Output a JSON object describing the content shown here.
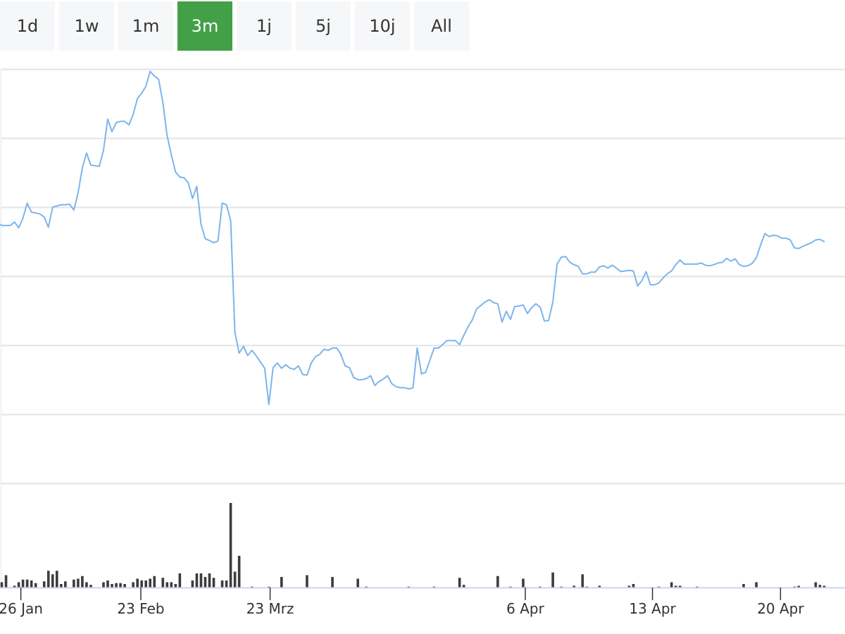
{
  "range_selector": {
    "buttons": [
      "1d",
      "1w",
      "1m",
      "3m",
      "1j",
      "5j",
      "10j",
      "All"
    ],
    "selected": "3m",
    "active_color": "#43a047"
  },
  "chart_data": [
    {
      "type": "line",
      "title": "",
      "xlabel": "",
      "ylabel": "",
      "x_unit": "trading day index (0 = first visible day)",
      "x_range": [
        0,
        195
      ],
      "y_range": [
        0,
        60
      ],
      "grid": true,
      "line_color": "#7cb5ec",
      "series": [
        {
          "values": [
            33.3,
            32.8,
            32.8,
            32.8,
            33.4,
            32.4,
            34.1,
            36.7,
            35.1,
            35.0,
            34.8,
            34.3,
            32.5,
            36.0,
            36.2,
            36.4,
            36.4,
            36.5,
            35.5,
            38.5,
            42.8,
            45.4,
            43.3,
            43.2,
            43.1,
            45.9,
            51.3,
            49.1,
            50.7,
            50.9,
            50.9,
            50.3,
            52.1,
            54.9,
            55.8,
            57.0,
            59.6,
            58.8,
            58.2,
            54.2,
            48.4,
            45.1,
            42.1,
            41.2,
            41.1,
            40.2,
            37.5,
            39.6,
            33.0,
            30.5,
            30.2,
            29.8,
            30.1,
            36.7,
            36.4,
            33.6,
            14.2,
            10.6,
            11.8,
            10.2,
            11.1,
            10.2,
            9.1,
            8.0,
            1.7,
            8.1,
            8.9,
            8.0,
            8.6,
            8.0,
            7.8,
            8.4,
            6.9,
            6.8,
            8.9,
            10.0,
            10.4,
            11.3,
            11.1,
            11.5,
            11.5,
            10.4,
            8.4,
            8.1,
            6.4,
            6.0,
            6.0,
            6.2,
            6.7,
            5.0,
            5.7,
            6.1,
            6.7,
            5.3,
            4.8,
            4.6,
            4.6,
            4.4,
            4.6,
            11.5,
            7.0,
            7.3,
            9.4,
            11.5,
            11.5,
            12.1,
            12.8,
            12.8,
            12.8,
            12.1,
            13.7,
            15.2,
            16.4,
            18.3,
            18.9,
            19.5,
            19.9,
            19.4,
            19.2,
            16.0,
            17.9,
            16.5,
            18.7,
            18.8,
            19.0,
            17.5,
            18.5,
            19.2,
            18.6,
            16.2,
            16.3,
            19.5,
            26.1,
            27.3,
            27.4,
            26.4,
            26.0,
            25.7,
            24.4,
            24.4,
            24.7,
            24.7,
            25.6,
            25.8,
            25.4,
            25.9,
            25.4,
            24.8,
            24.9,
            25.0,
            24.9,
            22.3,
            23.2,
            24.8,
            22.5,
            22.5,
            22.8,
            23.7,
            24.4,
            24.9,
            26.0,
            26.8,
            26.1,
            26.1,
            26.1,
            26.1,
            26.3,
            25.9,
            25.8,
            26.0,
            26.3,
            26.4,
            27.1,
            26.6,
            27.0,
            26.0,
            25.7,
            25.8,
            26.2,
            27.2,
            29.4,
            31.4,
            30.9,
            31.1,
            31.0,
            30.6,
            30.6,
            30.3,
            28.9,
            28.8,
            29.2,
            29.5,
            29.8,
            30.3,
            30.4,
            30.0
          ]
        }
      ]
    },
    {
      "type": "bar",
      "title": "",
      "xlabel": "",
      "ylabel": "",
      "x_unit": "trading day index (0 = first visible day)",
      "y_range": [
        0,
        100
      ],
      "bar_color": "#3c3c3c",
      "x": [
        0,
        1,
        2,
        4,
        5,
        6,
        7,
        8,
        9,
        11,
        12,
        13,
        14,
        15,
        16,
        18,
        19,
        20,
        21,
        22,
        25,
        26,
        27,
        28,
        29,
        30,
        32,
        33,
        34,
        35,
        36,
        37,
        39,
        40,
        41,
        42,
        43,
        46,
        47,
        48,
        49,
        50,
        51,
        53,
        54,
        55,
        56,
        57,
        60,
        64,
        67,
        73,
        79,
        85,
        87,
        97,
        103,
        109,
        110,
        118,
        121,
        124,
        128,
        131,
        133,
        136,
        138,
        139,
        142,
        149,
        150,
        156,
        159,
        160,
        161,
        165,
        176,
        179,
        188,
        189,
        193,
        194,
        195
      ],
      "values": [
        8,
        6,
        14,
        2,
        6,
        9,
        9,
        8,
        5,
        7,
        19,
        15,
        19,
        4,
        7,
        9,
        10,
        13,
        6,
        3,
        6,
        8,
        4,
        5,
        5,
        4,
        6,
        10,
        8,
        8,
        10,
        13,
        11,
        6,
        6,
        4,
        16,
        8,
        16,
        16,
        12,
        16,
        11,
        8,
        8,
        96,
        18,
        36,
        1,
        1,
        12,
        14,
        12,
        10,
        1,
        1,
        1,
        11,
        3,
        13,
        1,
        10,
        1,
        17,
        1,
        2,
        15,
        1,
        2,
        2,
        4,
        1,
        6,
        2,
        2,
        1,
        4,
        6,
        1,
        2,
        6,
        3,
        2
      ]
    }
  ],
  "x_axis": {
    "tick_labels": [
      "26 Jan",
      "23 Feb",
      "23 Mrz",
      "6 Apr",
      "13 Apr",
      "20 Apr"
    ]
  }
}
